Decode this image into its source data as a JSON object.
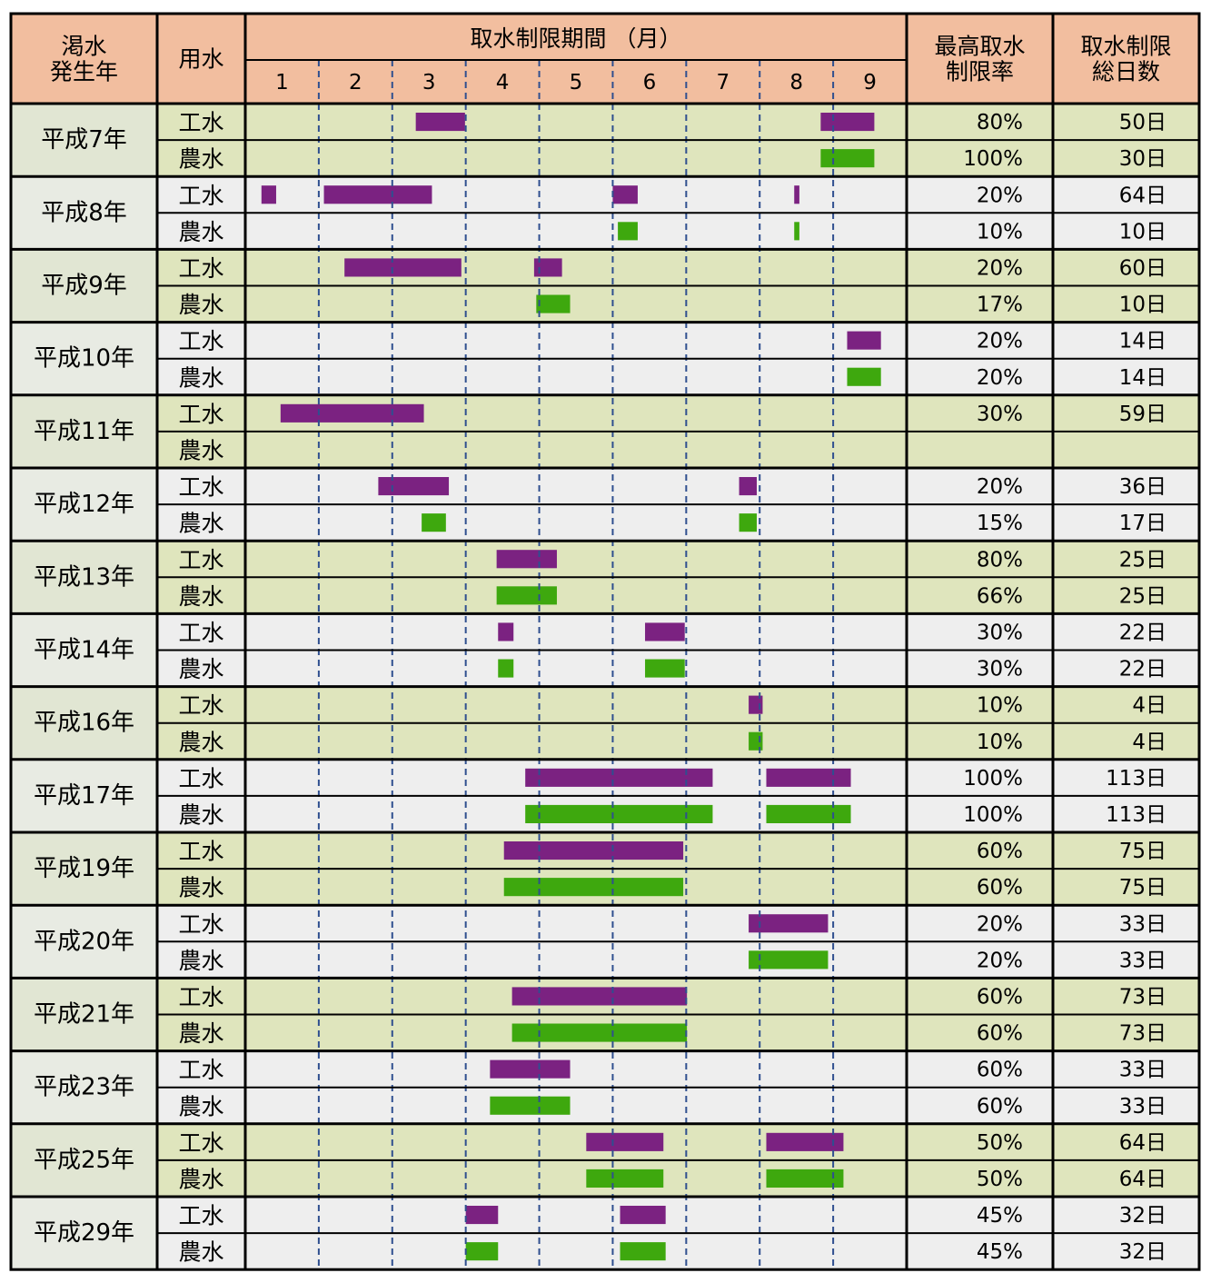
{
  "colors": {
    "header_bg": "#f2be9f",
    "band_green": "#dfe5bd",
    "band_gray": "#eeeeee",
    "year_cell_green": "#e1e6d3",
    "year_cell_gray": "#e8ebe3",
    "industrial_bar": "#7b2281",
    "agricultural_bar": "#3ea80e",
    "divider_blue": "#2f4f8f"
  },
  "icons": [],
  "headers": {
    "year": "渇水\n発生年",
    "usage": "用水",
    "period": "取水制限期間 （月）",
    "max_rate": "最高取水\n制限率",
    "total_days": "取水制限\n総日数"
  },
  "chart_data": {
    "type": "table",
    "months": [
      "1",
      "2",
      "3",
      "4",
      "5",
      "6",
      "7",
      "8",
      "9"
    ],
    "usage_types": [
      "工水",
      "農水"
    ],
    "bar_colors": {
      "工水": "industrial",
      "農水": "agricultural"
    },
    "groups": [
      {
        "year": "平成7年",
        "band": "green",
        "rows": [
          {
            "use": "工水",
            "rate": "80%",
            "days": "50日",
            "bars": [
              [
                3.32,
                3.99
              ],
              [
                8.83,
                9.56
              ]
            ]
          },
          {
            "use": "農水",
            "rate": "100%",
            "days": "30日",
            "bars": [
              [
                8.83,
                9.56
              ]
            ]
          }
        ]
      },
      {
        "year": "平成8年",
        "band": "gray",
        "rows": [
          {
            "use": "工水",
            "rate": "20%",
            "days": "64日",
            "bars": [
              [
                1.22,
                1.42
              ],
              [
                2.07,
                3.54
              ],
              [
                6.0,
                6.34
              ],
              [
                8.47,
                8.54
              ]
            ]
          },
          {
            "use": "農水",
            "rate": "10%",
            "days": "10日",
            "bars": [
              [
                6.07,
                6.34
              ],
              [
                8.47,
                8.54
              ]
            ]
          }
        ]
      },
      {
        "year": "平成9年",
        "band": "green",
        "rows": [
          {
            "use": "工水",
            "rate": "20%",
            "days": "60日",
            "bars": [
              [
                2.35,
                3.94
              ],
              [
                4.93,
                5.31
              ]
            ]
          },
          {
            "use": "農水",
            "rate": "17%",
            "days": "10日",
            "bars": [
              [
                4.96,
                5.42
              ]
            ]
          }
        ]
      },
      {
        "year": "平成10年",
        "band": "gray",
        "rows": [
          {
            "use": "工水",
            "rate": "20%",
            "days": "14日",
            "bars": [
              [
                9.19,
                9.65
              ]
            ]
          },
          {
            "use": "農水",
            "rate": "20%",
            "days": "14日",
            "bars": [
              [
                9.19,
                9.65
              ]
            ]
          }
        ]
      },
      {
        "year": "平成11年",
        "band": "green",
        "rows": [
          {
            "use": "工水",
            "rate": "30%",
            "days": "59日",
            "bars": [
              [
                1.48,
                3.43
              ]
            ]
          },
          {
            "use": "農水",
            "rate": "",
            "days": "",
            "bars": []
          }
        ]
      },
      {
        "year": "平成12年",
        "band": "gray",
        "rows": [
          {
            "use": "工水",
            "rate": "20%",
            "days": "36日",
            "bars": [
              [
                2.81,
                3.77
              ],
              [
                7.72,
                7.96
              ]
            ]
          },
          {
            "use": "農水",
            "rate": "15%",
            "days": "17日",
            "bars": [
              [
                3.4,
                3.73
              ],
              [
                7.72,
                7.96
              ]
            ]
          }
        ]
      },
      {
        "year": "平成13年",
        "band": "green",
        "rows": [
          {
            "use": "工水",
            "rate": "80%",
            "days": "25日",
            "bars": [
              [
                4.42,
                5.24
              ]
            ]
          },
          {
            "use": "農水",
            "rate": "66%",
            "days": "25日",
            "bars": [
              [
                4.42,
                5.24
              ]
            ]
          }
        ]
      },
      {
        "year": "平成14年",
        "band": "gray",
        "rows": [
          {
            "use": "工水",
            "rate": "30%",
            "days": "22日",
            "bars": [
              [
                4.44,
                4.65
              ],
              [
                6.44,
                6.98
              ]
            ]
          },
          {
            "use": "農水",
            "rate": "30%",
            "days": "22日",
            "bars": [
              [
                4.44,
                4.65
              ],
              [
                6.44,
                6.98
              ]
            ]
          }
        ]
      },
      {
        "year": "平成16年",
        "band": "green",
        "rows": [
          {
            "use": "工水",
            "rate": "10%",
            "days": "4日",
            "bars": [
              [
                7.85,
                8.04
              ]
            ]
          },
          {
            "use": "農水",
            "rate": "10%",
            "days": "4日",
            "bars": [
              [
                7.85,
                8.04
              ]
            ]
          }
        ]
      },
      {
        "year": "平成17年",
        "band": "gray",
        "rows": [
          {
            "use": "工水",
            "rate": "100%",
            "days": "113日",
            "bars": [
              [
                4.81,
                7.36
              ],
              [
                8.09,
                9.24
              ]
            ]
          },
          {
            "use": "農水",
            "rate": "100%",
            "days": "113日",
            "bars": [
              [
                4.81,
                7.36
              ],
              [
                8.09,
                9.24
              ]
            ]
          }
        ]
      },
      {
        "year": "平成19年",
        "band": "green",
        "rows": [
          {
            "use": "工水",
            "rate": "60%",
            "days": "75日",
            "bars": [
              [
                4.52,
                6.96
              ]
            ]
          },
          {
            "use": "農水",
            "rate": "60%",
            "days": "75日",
            "bars": [
              [
                4.52,
                6.96
              ]
            ]
          }
        ]
      },
      {
        "year": "平成20年",
        "band": "gray",
        "rows": [
          {
            "use": "工水",
            "rate": "20%",
            "days": "33日",
            "bars": [
              [
                7.85,
                8.93
              ]
            ]
          },
          {
            "use": "農水",
            "rate": "20%",
            "days": "33日",
            "bars": [
              [
                7.85,
                8.93
              ]
            ]
          }
        ]
      },
      {
        "year": "平成21年",
        "band": "green",
        "rows": [
          {
            "use": "工水",
            "rate": "60%",
            "days": "73日",
            "bars": [
              [
                4.63,
                7.01
              ]
            ]
          },
          {
            "use": "農水",
            "rate": "60%",
            "days": "73日",
            "bars": [
              [
                4.63,
                7.01
              ]
            ]
          }
        ]
      },
      {
        "year": "平成23年",
        "band": "gray",
        "rows": [
          {
            "use": "工水",
            "rate": "60%",
            "days": "33日",
            "bars": [
              [
                4.33,
                5.42
              ]
            ]
          },
          {
            "use": "農水",
            "rate": "60%",
            "days": "33日",
            "bars": [
              [
                4.33,
                5.42
              ]
            ]
          }
        ]
      },
      {
        "year": "平成25年",
        "band": "green",
        "rows": [
          {
            "use": "工水",
            "rate": "50%",
            "days": "64日",
            "bars": [
              [
                5.64,
                6.69
              ],
              [
                8.09,
                9.14
              ]
            ]
          },
          {
            "use": "農水",
            "rate": "50%",
            "days": "64日",
            "bars": [
              [
                5.64,
                6.69
              ],
              [
                8.09,
                9.14
              ]
            ]
          }
        ]
      },
      {
        "year": "平成29年",
        "band": "gray",
        "rows": [
          {
            "use": "工水",
            "rate": "45%",
            "days": "32日",
            "bars": [
              [
                4.0,
                4.44
              ],
              [
                6.1,
                6.72
              ]
            ]
          },
          {
            "use": "農水",
            "rate": "45%",
            "days": "32日",
            "bars": [
              [
                4.0,
                4.44
              ],
              [
                6.1,
                6.72
              ]
            ]
          }
        ]
      }
    ]
  }
}
